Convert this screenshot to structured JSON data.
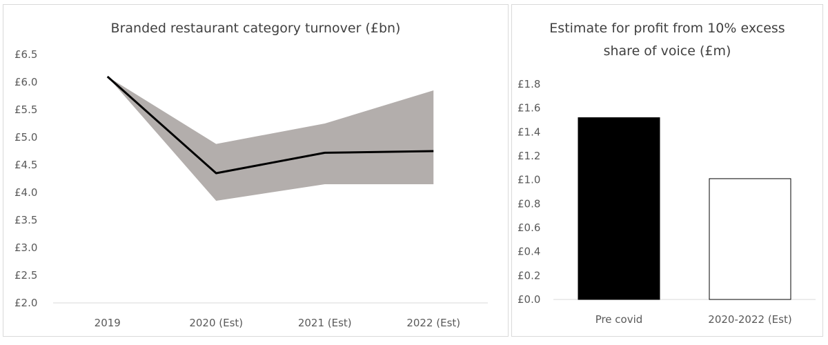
{
  "chart_data": [
    {
      "type": "line",
      "title": "Branded restaurant category turnover (£bn)",
      "categories": [
        "2019",
        "2020 (Est)",
        "2021 (Est)",
        "2022 (Est)"
      ],
      "y_ticks": [
        "£2.0",
        "£2.5",
        "£3.0",
        "£3.5",
        "£4.0",
        "£4.5",
        "£5.0",
        "£5.5",
        "£6.0",
        "£6.5"
      ],
      "ylim": [
        2.0,
        6.5
      ],
      "grid": false,
      "series": [
        {
          "values": [
            6.1,
            4.35,
            4.72,
            4.75
          ],
          "color": "#000000"
        }
      ],
      "band": {
        "upper": [
          6.1,
          4.88,
          5.25,
          5.85
        ],
        "lower": [
          6.1,
          3.85,
          4.15,
          4.15
        ],
        "color": "#b3aeac"
      }
    },
    {
      "type": "bar",
      "title": "Estimate for profit from 10% excess share of voice (£m)",
      "categories": [
        "Pre covid",
        "2020-2022 (Est)"
      ],
      "y_ticks": [
        "£0.0",
        "£0.2",
        "£0.4",
        "£0.6",
        "£0.8",
        "£1.0",
        "£1.2",
        "£1.4",
        "£1.6",
        "£1.8"
      ],
      "ylim": [
        0,
        1.8
      ],
      "grid": false,
      "values": [
        1.52,
        1.01
      ],
      "fills": [
        "#000000",
        "#ffffff"
      ]
    }
  ]
}
